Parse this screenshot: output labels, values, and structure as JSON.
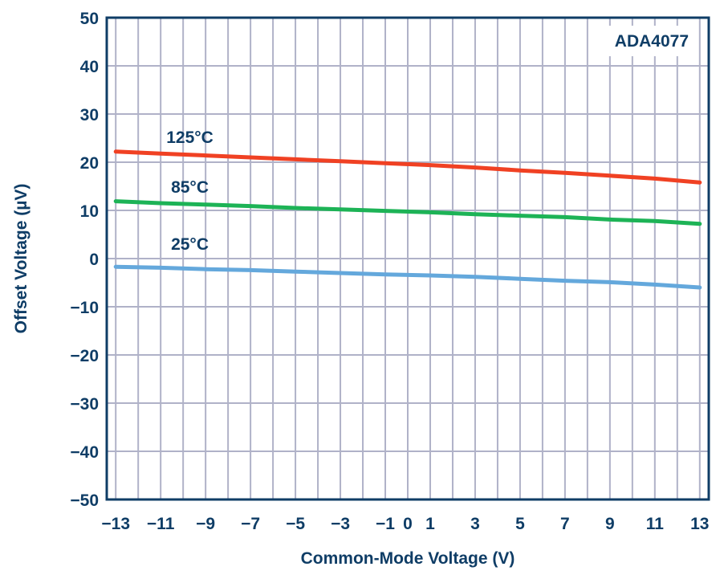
{
  "chart_data": {
    "type": "line",
    "title": "",
    "annotation": "ADA4077",
    "xlabel": "Common-Mode Voltage (V)",
    "ylabel": "Offset Voltage (µV)",
    "xlim": [
      -13.4,
      13.4
    ],
    "ylim": [
      -50,
      50
    ],
    "xticks": [
      -13,
      -11,
      -9,
      -7,
      -5,
      -3,
      -1,
      0,
      1,
      3,
      5,
      7,
      9,
      11,
      13
    ],
    "xtick_labels": [
      "−13",
      "−11",
      "−9",
      "−7",
      "−5",
      "−3",
      "−1",
      "0",
      "1",
      "3",
      "5",
      "7",
      "9",
      "11",
      "13"
    ],
    "yticks": [
      -50,
      -40,
      -30,
      -20,
      -10,
      0,
      10,
      20,
      30,
      40,
      50
    ],
    "ytick_labels": [
      "−50",
      "−40",
      "−30",
      "−20",
      "−10",
      "0",
      "10",
      "20",
      "30",
      "40",
      "50"
    ],
    "grid": true,
    "x": [
      -13,
      -11,
      -9,
      -7,
      -5,
      -3,
      -1,
      1,
      3,
      5,
      7,
      9,
      11,
      13
    ],
    "series": [
      {
        "name": "125°C",
        "color": "#f04123",
        "label_pos": [
          -9.7,
          25.3
        ],
        "values": [
          22.2,
          21.8,
          21.4,
          21.0,
          20.6,
          20.2,
          19.8,
          19.4,
          18.9,
          18.3,
          17.8,
          17.2,
          16.6,
          15.8
        ]
      },
      {
        "name": "85°C",
        "color": "#1db356",
        "label_pos": [
          -9.7,
          15.0
        ],
        "values": [
          11.9,
          11.5,
          11.2,
          10.9,
          10.5,
          10.2,
          9.9,
          9.6,
          9.2,
          8.9,
          8.6,
          8.1,
          7.8,
          7.2
        ]
      },
      {
        "name": "25°C",
        "color": "#64a8dc",
        "label_pos": [
          -9.7,
          3.2
        ],
        "values": [
          -1.7,
          -1.9,
          -2.2,
          -2.4,
          -2.7,
          -3.0,
          -3.3,
          -3.5,
          -3.8,
          -4.2,
          -4.6,
          -4.9,
          -5.4,
          -6.0
        ]
      }
    ],
    "colors": {
      "axis": "#0f3d66",
      "grid": "#b0b2c8"
    }
  }
}
